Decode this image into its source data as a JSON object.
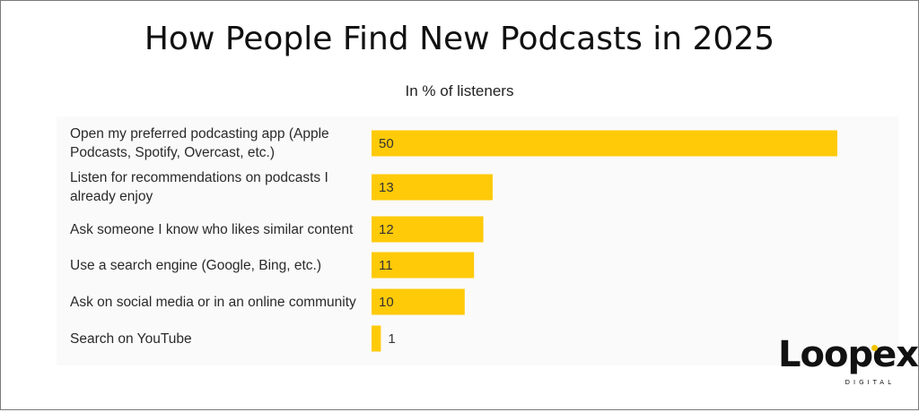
{
  "chart_data": {
    "type": "bar",
    "orientation": "horizontal",
    "title": "How People Find New Podcasts in 2025",
    "subtitle": "In % of listeners",
    "categories": [
      "Open my preferred podcasting app (Apple Podcasts, Spotify, Overcast, etc.)",
      "Listen for recommendations on podcasts I already enjoy",
      "Ask someone I know who likes similar content",
      "Use a search engine (Google, Bing, etc.)",
      "Ask on social media or in an online community",
      "Search on YouTube"
    ],
    "values": [
      50,
      13,
      12,
      11,
      10,
      1
    ],
    "data_labels": [
      "50",
      "13",
      "12",
      "11",
      "10",
      "1"
    ],
    "xlim": [
      0,
      50
    ],
    "bar_color": "#FFCA08",
    "grid": false,
    "legend": "none"
  },
  "branding": {
    "logo_text": "Loopex",
    "logo_subtext": "DIGITAL",
    "accent_color": "#F5C400"
  }
}
